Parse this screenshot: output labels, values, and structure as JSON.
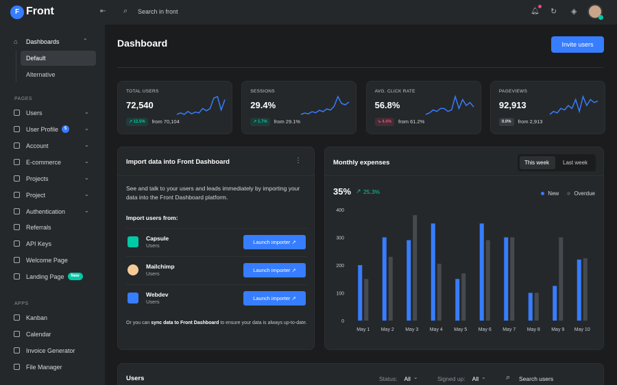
{
  "brand": "Front",
  "search_placeholder": "Search in front",
  "sidebar": {
    "dashboards": {
      "label": "Dashboards",
      "items": [
        "Default",
        "Alternative"
      ],
      "active": 0
    },
    "sections": [
      {
        "title": "PAGES",
        "items": [
          {
            "label": "Users",
            "submenu": true
          },
          {
            "label": "User Profile",
            "badge": "5",
            "submenu": true
          },
          {
            "label": "Account",
            "submenu": true
          },
          {
            "label": "E-commerce",
            "submenu": true
          },
          {
            "label": "Projects",
            "submenu": true
          },
          {
            "label": "Project",
            "submenu": true
          },
          {
            "label": "Authentication",
            "submenu": true
          },
          {
            "label": "Referrals"
          },
          {
            "label": "API Keys"
          },
          {
            "label": "Welcome Page"
          },
          {
            "label": "Landing Page",
            "badge": "New"
          }
        ]
      },
      {
        "title": "APPS",
        "items": [
          {
            "label": "Kanban"
          },
          {
            "label": "Calendar"
          },
          {
            "label": "Invoice Generator"
          },
          {
            "label": "File Manager"
          }
        ]
      }
    ]
  },
  "page_title": "Dashboard",
  "invite_button": "Invite users",
  "stats": [
    {
      "label": "TOTAL USERS",
      "value": "72,540",
      "change": "12.5%",
      "trend": "up",
      "previous": "from 70,104",
      "sparkline": [
        3,
        3.5,
        3,
        4,
        3.2,
        3.8,
        3.5,
        5,
        4.2,
        5,
        8.5,
        9,
        4.5,
        8
      ]
    },
    {
      "label": "SESSIONS",
      "value": "29.4%",
      "change": "1.7%",
      "trend": "up",
      "previous": "from 29.1%",
      "sparkline": [
        2,
        2.5,
        2.2,
        3,
        2.6,
        3.5,
        3,
        4,
        3.6,
        5,
        8.5,
        6,
        5.5,
        6.5
      ]
    },
    {
      "label": "AVG. CLICK RATE",
      "value": "56.8%",
      "change": "4.4%",
      "trend": "down",
      "previous": "from 61.2%",
      "sparkline": [
        3,
        3.5,
        4.5,
        4,
        5,
        5,
        4,
        4.5,
        9,
        5,
        8,
        6,
        7,
        5.5
      ]
    },
    {
      "label": "PAGEVIEWS",
      "value": "92,913",
      "change": "0.0%",
      "trend": "flat",
      "previous": "from 2,913",
      "sparkline": [
        2,
        3,
        2.5,
        4,
        3.5,
        5,
        4,
        7,
        3,
        8,
        5,
        7,
        6,
        6.5
      ]
    }
  ],
  "import_card": {
    "title": "Import data into Front Dashboard",
    "description": "See and talk to your users and leads immediately by importing your data into the Front Dashboard platform.",
    "subtitle": "Import users from:",
    "sources": [
      {
        "name": "Capsule",
        "meta": "Users",
        "button": "Launch importer"
      },
      {
        "name": "Mailchimp",
        "meta": "Users",
        "button": "Launch importer"
      },
      {
        "name": "Webdev",
        "meta": "Users",
        "button": "Launch importer"
      }
    ],
    "footer": {
      "before": "Or you can ",
      "link": "sync data to Front Dashboard",
      "after": " to ensure your data is always up-to-date."
    }
  },
  "expenses": {
    "type": "bar",
    "title": "Monthly expenses",
    "tabs": [
      "This week",
      "Last week"
    ],
    "active_tab": 0,
    "total": "35%",
    "change": "25.3%",
    "categories": [
      "May 1",
      "May 2",
      "May 3",
      "May 4",
      "May 5",
      "May 6",
      "May 7",
      "May 8",
      "May 9",
      "May 10"
    ],
    "series": [
      {
        "name": "New",
        "color": "#377dff",
        "values": [
          200,
          300,
          290,
          350,
          150,
          350,
          300,
          100,
          125,
          220
        ]
      },
      {
        "name": "Overdue",
        "color": "#464a4f",
        "values": [
          150,
          230,
          380,
          205,
          170,
          290,
          300,
          100,
          300,
          225
        ]
      }
    ],
    "ylim": [
      0,
      400
    ],
    "yticks": [
      0,
      100,
      200,
      300,
      400
    ],
    "grid": false
  },
  "users_card": {
    "title": "Users",
    "filters": [
      {
        "label": "Status:",
        "value": "All"
      },
      {
        "label": "Signed up:",
        "value": "All"
      }
    ],
    "search_placeholder": "Search users"
  }
}
